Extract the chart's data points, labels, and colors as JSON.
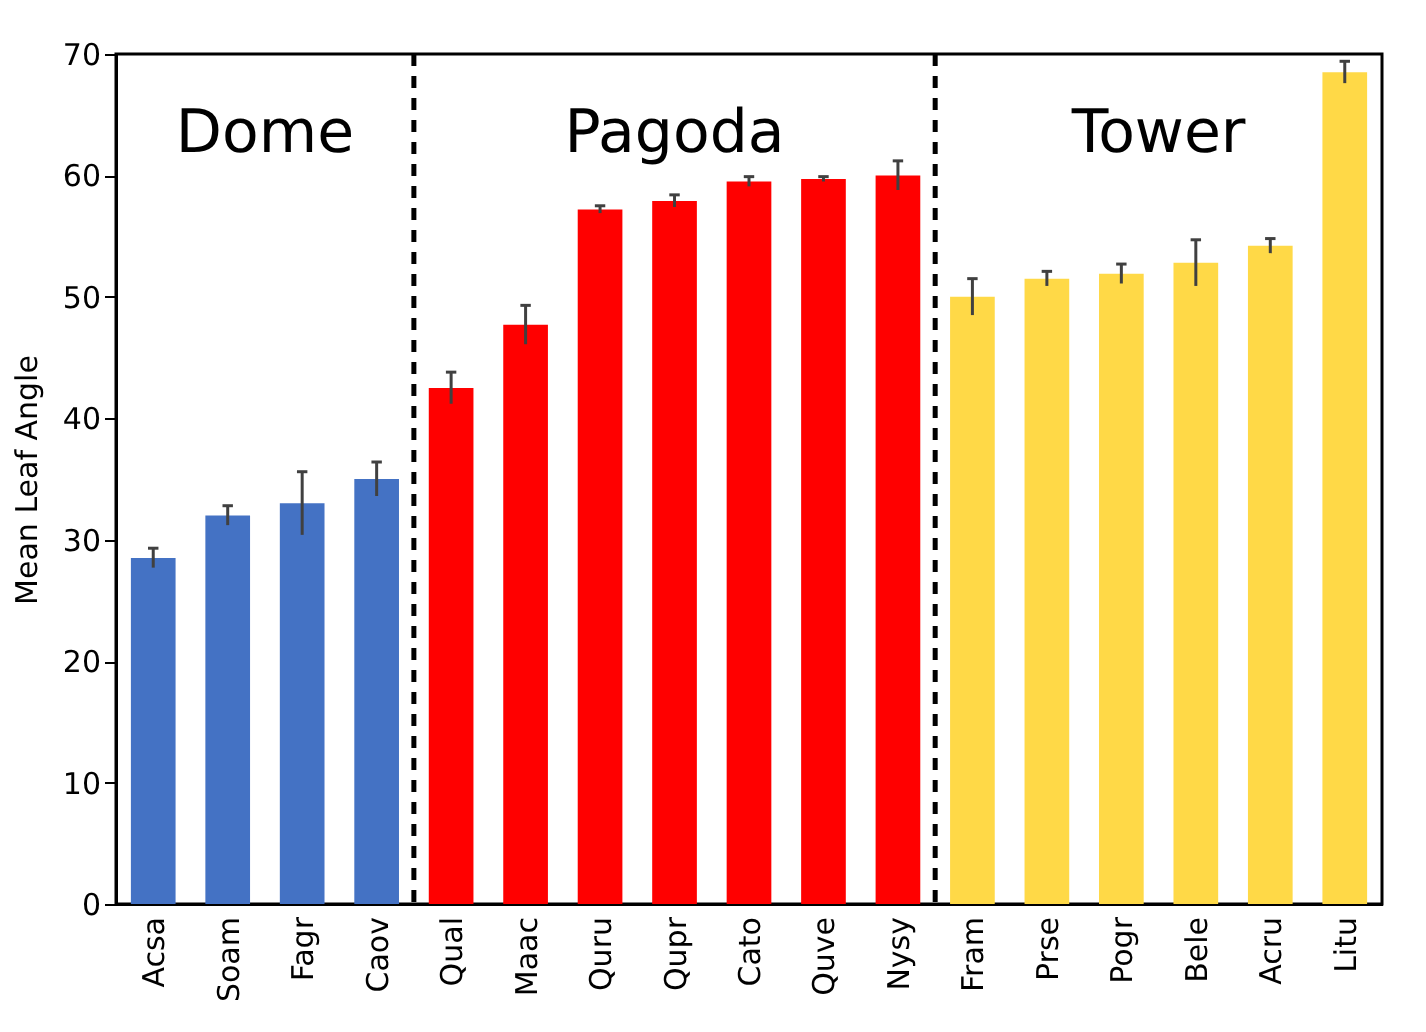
{
  "chart_data": {
    "type": "bar",
    "ylabel": "Mean Leaf Angle",
    "categories": [
      "Acsa",
      "Soam",
      "Fagr",
      "Caov",
      "Qual",
      "Maac",
      "Quru",
      "Qupr",
      "Cato",
      "Quve",
      "Nysy",
      "Fram",
      "Prse",
      "Pogr",
      "Bele",
      "Acru",
      "Litu"
    ],
    "values": [
      28.5,
      32,
      33,
      35,
      42.5,
      47.7,
      57.2,
      57.9,
      59.5,
      59.7,
      60,
      50,
      51.5,
      51.9,
      52.8,
      54.2,
      68.5
    ],
    "errors": [
      0.8,
      0.8,
      2.6,
      1.4,
      1.3,
      1.6,
      0.3,
      0.5,
      0.4,
      0.2,
      1.2,
      1.5,
      0.6,
      0.8,
      1.9,
      0.6,
      0.9
    ],
    "colors": [
      "#4472c4",
      "#4472c4",
      "#4472c4",
      "#4472c4",
      "#ff0000",
      "#ff0000",
      "#ff0000",
      "#ff0000",
      "#ff0000",
      "#ff0000",
      "#ff0000",
      "#ffd947",
      "#ffd947",
      "#ffd947",
      "#ffd947",
      "#ffd947",
      "#ffd947"
    ],
    "ylim": [
      0,
      70
    ],
    "yticks": [
      0,
      10,
      20,
      30,
      40,
      50,
      60,
      70
    ],
    "annotations": [
      "Dome",
      "Pagoda",
      "Tower"
    ]
  }
}
